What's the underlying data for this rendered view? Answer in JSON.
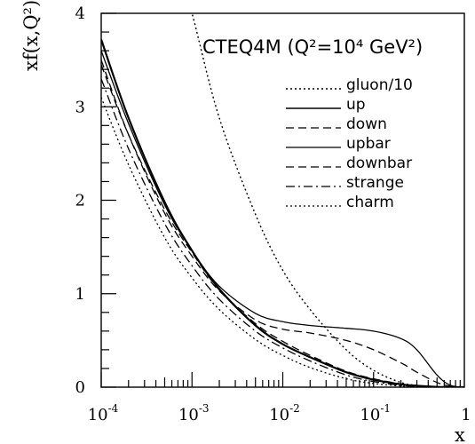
{
  "chart_data": {
    "type": "line",
    "title": "CTEQ4M (Q²=10⁴ GeV²)",
    "xlabel": "x",
    "ylabel": "xf(x,Q²)",
    "x_scale": "log",
    "xlim": [
      0.0001,
      1
    ],
    "ylim": [
      0,
      4
    ],
    "x_ticks": [
      {
        "value": 0.0001,
        "base": "10",
        "exp": "-4"
      },
      {
        "value": 0.001,
        "base": "10",
        "exp": "-3"
      },
      {
        "value": 0.01,
        "base": "10",
        "exp": "-2"
      },
      {
        "value": 0.1,
        "base": "10",
        "exp": "-1"
      },
      {
        "value": 1,
        "base": "1",
        "exp": ""
      }
    ],
    "y_ticks": [
      {
        "value": 0,
        "label": "0"
      },
      {
        "value": 1,
        "label": "1"
      },
      {
        "value": 2,
        "label": "2"
      },
      {
        "value": 3,
        "label": "3"
      },
      {
        "value": 4,
        "label": "4"
      }
    ],
    "grid": false,
    "legend_position": "top-right",
    "x": [
      0.0001,
      0.0002,
      0.0005,
      0.001,
      0.002,
      0.005,
      0.01,
      0.02,
      0.05,
      0.1,
      0.2,
      0.3,
      0.5,
      0.7,
      1
    ],
    "series": [
      {
        "name": "gluon/10",
        "style": "dotted",
        "width": 1.4,
        "values": [
          null,
          null,
          null,
          4.0,
          2.88,
          1.85,
          1.25,
          0.83,
          0.4,
          0.18,
          0.05,
          0.02,
          0.003,
          0.0,
          0.0
        ]
      },
      {
        "name": "up",
        "style": "solid",
        "width": 2.2,
        "values": [
          3.72,
          2.88,
          1.98,
          1.46,
          1.05,
          0.66,
          0.46,
          0.32,
          0.16,
          0.08,
          0.03,
          0.015,
          0.003,
          0.0,
          0.0
        ]
      },
      {
        "name": "down",
        "style": "dashed",
        "width": 1.3,
        "values": [
          3.5,
          2.7,
          1.86,
          1.4,
          1.03,
          0.72,
          0.62,
          0.58,
          0.5,
          0.4,
          0.26,
          0.16,
          0.05,
          0.01,
          0.0
        ]
      },
      {
        "name": "upbar",
        "style": "solid",
        "width": 1.3,
        "values": [
          3.6,
          2.82,
          1.95,
          1.46,
          1.08,
          0.79,
          0.7,
          0.66,
          0.63,
          0.6,
          0.52,
          0.4,
          0.13,
          0.02,
          0.0
        ]
      },
      {
        "name": "downbar",
        "style": "dashed",
        "width": 1.3,
        "values": [
          3.45,
          2.7,
          1.9,
          1.44,
          1.04,
          0.68,
          0.49,
          0.34,
          0.17,
          0.09,
          0.035,
          0.015,
          0.003,
          0.0,
          0.0
        ]
      },
      {
        "name": "strange",
        "style": "dashdot",
        "width": 1.3,
        "values": [
          3.3,
          2.55,
          1.75,
          1.3,
          0.94,
          0.6,
          0.42,
          0.28,
          0.13,
          0.06,
          0.02,
          0.008,
          0.001,
          0.0,
          0.0
        ]
      },
      {
        "name": "charm",
        "style": "dotted",
        "width": 1.3,
        "values": [
          3.1,
          2.38,
          1.6,
          1.17,
          0.83,
          0.51,
          0.34,
          0.21,
          0.09,
          0.04,
          0.012,
          0.004,
          0.0,
          0.0,
          0.0
        ]
      }
    ]
  }
}
